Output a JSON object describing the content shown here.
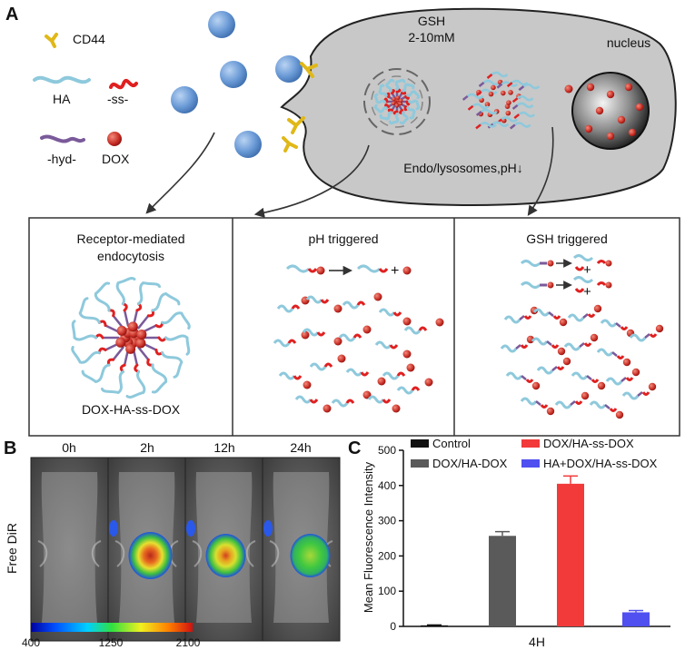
{
  "panel_a": {
    "label": "A",
    "legend": {
      "cd44": "CD44",
      "ha": "HA",
      "ss": "-ss-",
      "hyd": "-hyd-",
      "dox": "DOX"
    },
    "cell": {
      "gsh_line1": "GSH",
      "gsh_line2": "2-10mM",
      "nucleus": "nucleus",
      "endo": "Endo/lysosomes,pH↓"
    },
    "boxes": [
      {
        "title": [
          "Receptor-mediated",
          "endocytosis"
        ],
        "caption": "DOX-HA-ss-DOX"
      },
      {
        "title": [
          "pH triggered"
        ]
      },
      {
        "title": [
          "GSH triggered"
        ]
      }
    ],
    "colors": {
      "nanoparticle": "#6fa0d8",
      "cell": "#c9c9c9",
      "ha_strand": "#8ec9dc",
      "ss_link": "#e02020",
      "hyd_link": "#7a5a9a",
      "dox": "#c02020",
      "receptor": "#e8c020"
    }
  },
  "panel_b": {
    "label": "B",
    "row_label": "Free DiR",
    "timepoints": [
      "0h",
      "2h",
      "12h",
      "24h"
    ],
    "colorbar": {
      "min": "400",
      "mid": "1250",
      "max": "2100"
    }
  },
  "panel_c": {
    "label": "C",
    "chart_data": {
      "type": "bar",
      "title": "",
      "xlabel": "4H",
      "ylabel": "Mean Fluorescence Intensity",
      "ylim": [
        0,
        500
      ],
      "yticks": [
        "0",
        "100",
        "200",
        "300",
        "400",
        "500"
      ],
      "series": [
        {
          "name": "Control",
          "value": 3,
          "error": 1,
          "color": "#111111"
        },
        {
          "name": "DOX/HA-DOX",
          "value": 257,
          "error": 12,
          "color": "#5a5a5a"
        },
        {
          "name": "DOX/HA-ss-DOX",
          "value": 405,
          "error": 22,
          "color": "#f23a3a"
        },
        {
          "name": "HA+DOX/HA-ss-DOX",
          "value": 40,
          "error": 5,
          "color": "#5050f0"
        }
      ],
      "legend": "top"
    }
  }
}
